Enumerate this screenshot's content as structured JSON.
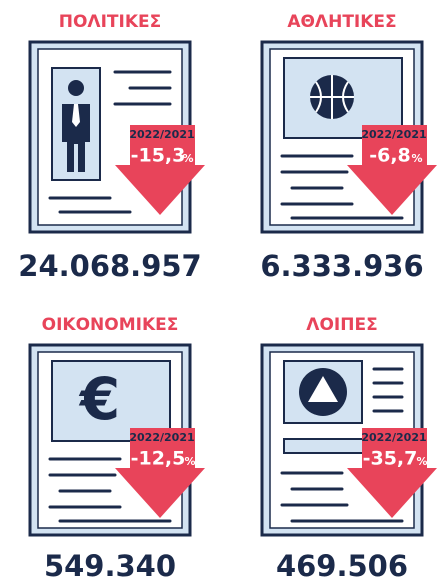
{
  "panels": [
    {
      "title": "ΠΟΛΙΤΙΚΕΣ",
      "period": "2022/2021",
      "change": "-15,3",
      "unit": "%",
      "total": "24.068.957"
    },
    {
      "title": "ΑΘΛΗΤΙΚΕΣ",
      "period": "2022/2021",
      "change": "-6,8",
      "unit": "%",
      "total": "6.333.936"
    },
    {
      "title": "ΟΙΚΟΝΟΜΙΚΕΣ",
      "period": "2022/2021",
      "change": "-12,5",
      "unit": "%",
      "total": "549.340"
    },
    {
      "title": "ΛΟΙΠΕΣ",
      "period": "2022/2021",
      "change": "-35,7",
      "unit": "%",
      "total": "469.506"
    }
  ]
}
